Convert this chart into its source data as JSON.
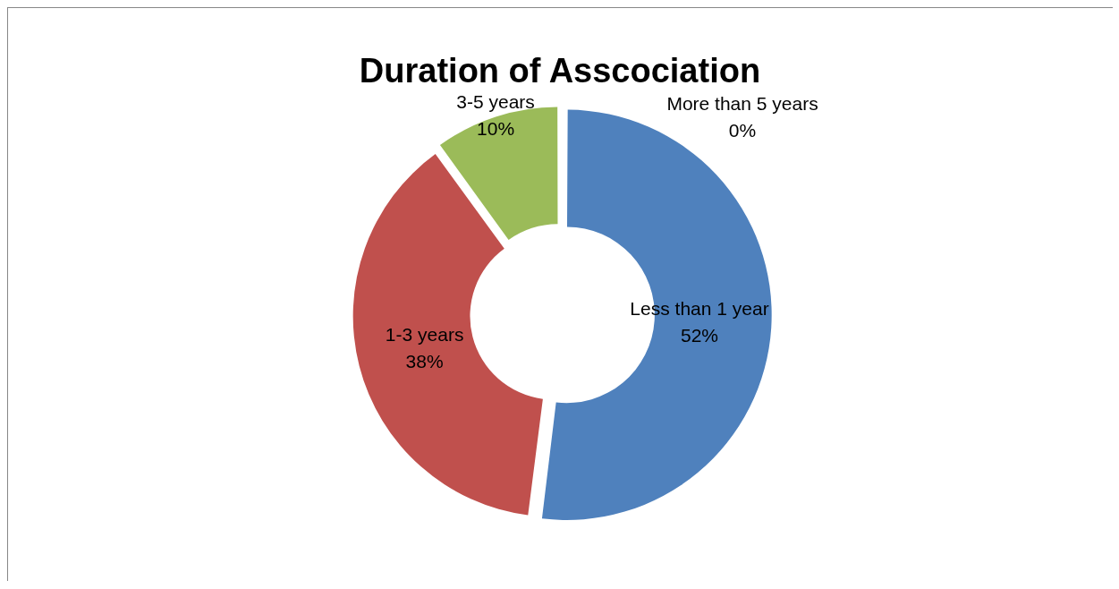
{
  "chart_data": {
    "type": "donut",
    "title": "Duration of Asscociation",
    "categories": [
      "Less than 1 year",
      "1-3 years",
      "3-5 years",
      "More than 5 years"
    ],
    "values": [
      52,
      38,
      10,
      0
    ],
    "value_labels": [
      "52%",
      "38%",
      "10%",
      "0%"
    ],
    "colors": [
      "#4f81bd",
      "#c0504d",
      "#9bbb59",
      "#8064a2"
    ],
    "legend": false
  }
}
